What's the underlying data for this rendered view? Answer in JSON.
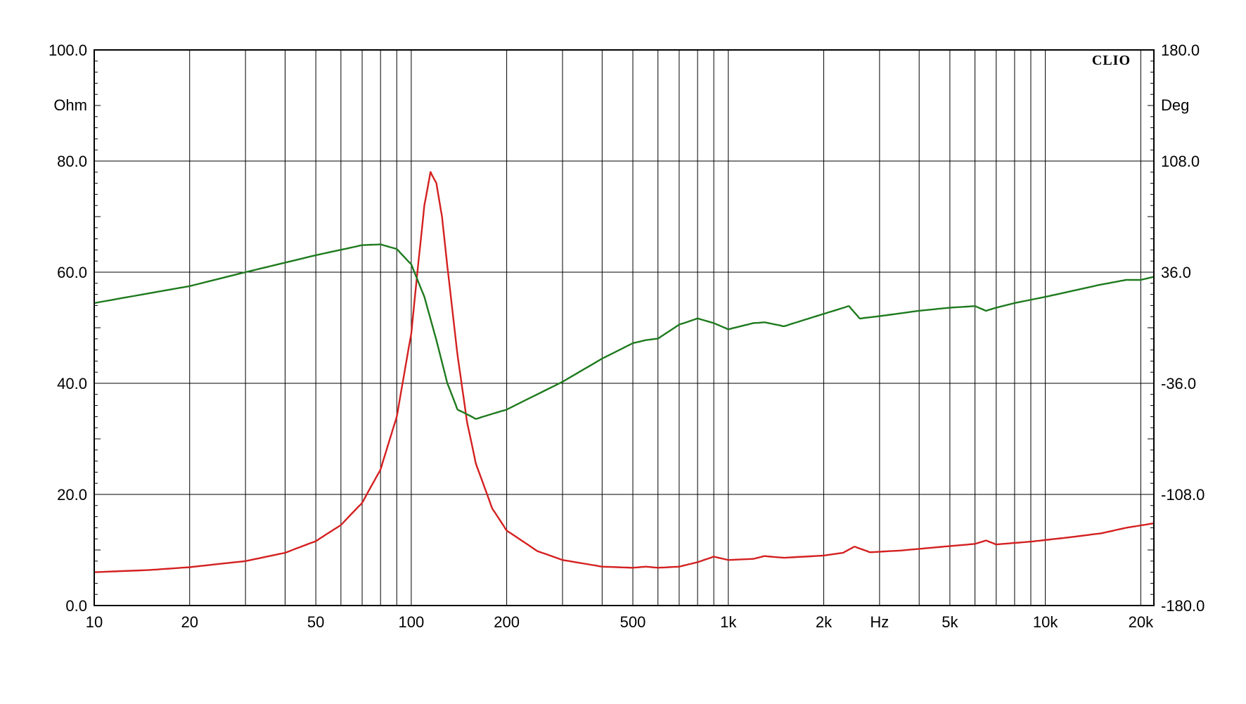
{
  "chart_data": {
    "type": "line",
    "brand": "CLIO",
    "x_scale": "log",
    "xlim": [
      10,
      22000
    ],
    "x_unit": "Hz",
    "x_tick_values": [
      10,
      20,
      50,
      100,
      200,
      500,
      1000,
      2000,
      5000,
      10000,
      20000
    ],
    "x_tick_labels": [
      "10",
      "20",
      "50",
      "100",
      "200",
      "500",
      "1k",
      "2k",
      "5k",
      "10k",
      "20k"
    ],
    "y_left": {
      "unit": "Ohm",
      "lim": [
        0,
        100
      ],
      "tick_values": [
        0,
        20,
        40,
        60,
        80,
        100
      ],
      "tick_labels": [
        "0.0",
        "20.0",
        "40.0",
        "60.0",
        "80.0",
        "100.0"
      ]
    },
    "y_right": {
      "unit": "Deg",
      "lim": [
        -180,
        180
      ],
      "tick_values": [
        -180,
        -108,
        -36,
        36,
        108,
        180
      ],
      "tick_labels": [
        "-180.0",
        "-108.0",
        "-36.0",
        "36.0",
        "108.0",
        "180.0"
      ]
    },
    "grid": true,
    "series": [
      {
        "color": "#d42020",
        "axis": "left",
        "points": [
          [
            10,
            6.0
          ],
          [
            15,
            6.4
          ],
          [
            20,
            6.9
          ],
          [
            30,
            8.0
          ],
          [
            40,
            9.5
          ],
          [
            50,
            11.6
          ],
          [
            60,
            14.5
          ],
          [
            70,
            18.5
          ],
          [
            80,
            24.5
          ],
          [
            90,
            34.0
          ],
          [
            100,
            49.0
          ],
          [
            105,
            61.0
          ],
          [
            110,
            72.0
          ],
          [
            115,
            78.0
          ],
          [
            120,
            76.0
          ],
          [
            125,
            70.0
          ],
          [
            130,
            61.0
          ],
          [
            140,
            45.0
          ],
          [
            150,
            33.0
          ],
          [
            160,
            25.5
          ],
          [
            180,
            17.5
          ],
          [
            200,
            13.5
          ],
          [
            250,
            9.8
          ],
          [
            300,
            8.2
          ],
          [
            400,
            7.0
          ],
          [
            500,
            6.8
          ],
          [
            550,
            7.0
          ],
          [
            600,
            6.8
          ],
          [
            700,
            7.0
          ],
          [
            800,
            7.8
          ],
          [
            900,
            8.8
          ],
          [
            1000,
            8.2
          ],
          [
            1200,
            8.4
          ],
          [
            1300,
            8.9
          ],
          [
            1500,
            8.6
          ],
          [
            2000,
            9.0
          ],
          [
            2300,
            9.5
          ],
          [
            2500,
            10.6
          ],
          [
            2800,
            9.6
          ],
          [
            3500,
            9.9
          ],
          [
            5000,
            10.7
          ],
          [
            6000,
            11.1
          ],
          [
            6500,
            11.7
          ],
          [
            7000,
            11.0
          ],
          [
            9000,
            11.5
          ],
          [
            12000,
            12.3
          ],
          [
            15000,
            13.0
          ],
          [
            18000,
            14.0
          ],
          [
            22000,
            14.8
          ]
        ]
      },
      {
        "color": "#1e7a1e",
        "axis": "right",
        "points": [
          [
            10,
            16.0
          ],
          [
            20,
            27.0
          ],
          [
            30,
            36.0
          ],
          [
            50,
            47.0
          ],
          [
            70,
            53.5
          ],
          [
            80,
            54.0
          ],
          [
            90,
            51.0
          ],
          [
            100,
            41.0
          ],
          [
            110,
            20.0
          ],
          [
            120,
            -8.0
          ],
          [
            130,
            -36.0
          ],
          [
            140,
            -53.0
          ],
          [
            160,
            -59.0
          ],
          [
            200,
            -53.0
          ],
          [
            300,
            -35.0
          ],
          [
            400,
            -20.0
          ],
          [
            500,
            -10.0
          ],
          [
            550,
            -8.0
          ],
          [
            600,
            -7.0
          ],
          [
            700,
            2.0
          ],
          [
            800,
            6.0
          ],
          [
            900,
            3.0
          ],
          [
            1000,
            -1.0
          ],
          [
            1200,
            3.0
          ],
          [
            1300,
            3.5
          ],
          [
            1500,
            1.0
          ],
          [
            2000,
            9.0
          ],
          [
            2400,
            14.0
          ],
          [
            2600,
            6.0
          ],
          [
            3000,
            7.5
          ],
          [
            4000,
            11.0
          ],
          [
            5000,
            13.0
          ],
          [
            6000,
            14.0
          ],
          [
            6500,
            11.0
          ],
          [
            7000,
            13.0
          ],
          [
            8000,
            16.0
          ],
          [
            10000,
            20.0
          ],
          [
            15000,
            28.0
          ],
          [
            18000,
            31.0
          ],
          [
            20000,
            31.0
          ],
          [
            22000,
            33.0
          ]
        ]
      }
    ]
  }
}
